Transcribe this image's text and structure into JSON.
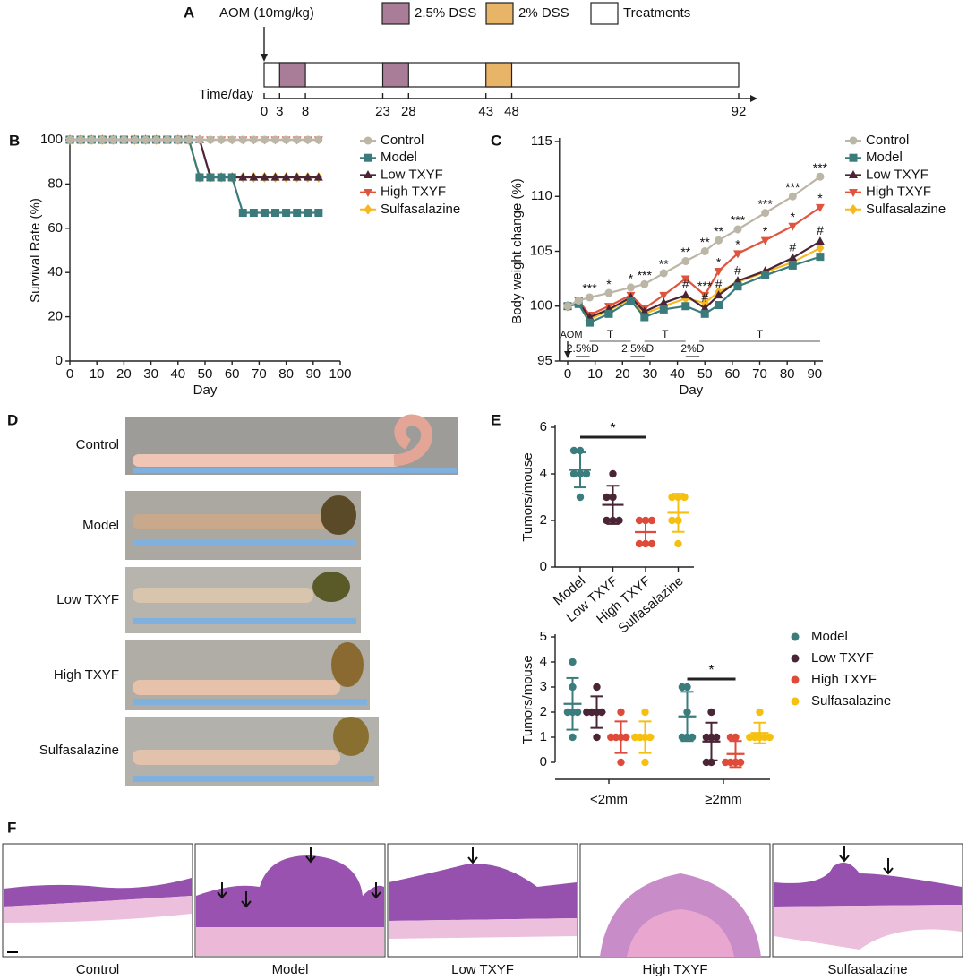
{
  "panel_labels": [
    "A",
    "B",
    "C",
    "D",
    "E",
    "F"
  ],
  "timeline": {
    "aom": "AOM (10mg/kg)",
    "legend": [
      {
        "label": "2.5% DSS",
        "color": "#a97d98"
      },
      {
        "label": "2% DSS",
        "color": "#e8b468"
      },
      {
        "label": "Treatments",
        "color": "#ffffff"
      }
    ],
    "axis_label": "Time/day",
    "xlim": [
      0,
      92
    ],
    "xticks": [
      0,
      3,
      8,
      23,
      28,
      43,
      48,
      92
    ],
    "segments": [
      {
        "start": 3,
        "end": 8,
        "color": "#a97d98"
      },
      {
        "start": 23,
        "end": 28,
        "color": "#a97d98"
      },
      {
        "start": 43,
        "end": 48,
        "color": "#e8b468"
      }
    ]
  },
  "chart_data": [
    {
      "type": "line",
      "xlabel": "Day",
      "ylabel": "Survival Rate (%)",
      "x": [
        0,
        4,
        8,
        12,
        16,
        20,
        24,
        28,
        32,
        36,
        40,
        44,
        48,
        52,
        56,
        60,
        64,
        68,
        72,
        76,
        80,
        84,
        88,
        92
      ],
      "series": [
        {
          "name": "Control",
          "color": "#bcb6a6",
          "marker": "circle",
          "values": [
            100,
            100,
            100,
            100,
            100,
            100,
            100,
            100,
            100,
            100,
            100,
            100,
            100,
            100,
            100,
            100,
            100,
            100,
            100,
            100,
            100,
            100,
            100,
            100
          ]
        },
        {
          "name": "Model",
          "color": "#3b7b7b",
          "marker": "square",
          "values": [
            100,
            100,
            100,
            100,
            100,
            100,
            100,
            100,
            100,
            100,
            100,
            100,
            83,
            83,
            83,
            83,
            67,
            67,
            67,
            67,
            67,
            67,
            67,
            67
          ]
        },
        {
          "name": "Low TXYF",
          "color": "#4a2535",
          "marker": "triangle-up",
          "values": [
            100,
            100,
            100,
            100,
            100,
            100,
            100,
            100,
            100,
            100,
            100,
            100,
            100,
            83,
            83,
            83,
            83,
            83,
            83,
            83,
            83,
            83,
            83,
            83
          ]
        },
        {
          "name": "High TXYF",
          "color": "#e0533c",
          "marker": "triangle-down",
          "values": [
            100,
            100,
            100,
            100,
            100,
            100,
            100,
            100,
            100,
            100,
            100,
            100,
            100,
            100,
            100,
            100,
            100,
            100,
            100,
            100,
            100,
            100,
            100,
            100
          ]
        },
        {
          "name": "Sulfasalazine",
          "color": "#f5b820",
          "marker": "diamond",
          "values": [
            100,
            100,
            100,
            100,
            100,
            100,
            100,
            100,
            100,
            100,
            100,
            100,
            83,
            83,
            83,
            83,
            83,
            83,
            83,
            83,
            83,
            83,
            83,
            83
          ]
        }
      ],
      "xlim": [
        0,
        100
      ],
      "xticks": [
        0,
        10,
        20,
        30,
        40,
        50,
        60,
        70,
        80,
        90,
        100
      ],
      "ylim": [
        0,
        100
      ],
      "yticks": [
        0,
        20,
        40,
        60,
        80,
        100
      ],
      "grid": false,
      "legend": "right"
    },
    {
      "type": "line",
      "xlabel": "Day",
      "ylabel": "Body weight change (%)",
      "x": [
        0,
        4,
        8,
        15,
        23,
        28,
        35,
        43,
        50,
        55,
        62,
        72,
        82,
        92
      ],
      "series": [
        {
          "name": "Control",
          "color": "#bcb6a6",
          "marker": "circle",
          "values": [
            100,
            100.5,
            100.8,
            101.2,
            101.7,
            102,
            103,
            104.1,
            105,
            106,
            107,
            108.5,
            110,
            111.8
          ],
          "significance": [
            null,
            null,
            "***",
            "*",
            "*",
            "***",
            "**",
            "**",
            "**",
            "**",
            "***",
            "***",
            "***",
            "***"
          ]
        },
        {
          "name": "Model",
          "color": "#3b7b7b",
          "marker": "square",
          "values": [
            100,
            100.2,
            98.5,
            99.3,
            100.5,
            99,
            99.7,
            100,
            99.3,
            100.1,
            101.8,
            102.8,
            103.7,
            104.5
          ]
        },
        {
          "name": "Low TXYF",
          "color": "#4a2535",
          "marker": "triangle-up",
          "values": [
            100,
            100.3,
            99,
            99.7,
            100.8,
            99.5,
            100.3,
            101,
            99.8,
            101,
            102.3,
            103.2,
            104.4,
            105.9
          ],
          "significance": [
            null,
            null,
            null,
            null,
            null,
            null,
            null,
            "#",
            "#",
            "#",
            "#",
            null,
            "#",
            "#"
          ]
        },
        {
          "name": "High TXYF",
          "color": "#e0533c",
          "marker": "triangle-down",
          "values": [
            100,
            100.5,
            99.2,
            100,
            101,
            99.8,
            101,
            102.5,
            101,
            103.2,
            104.8,
            106,
            107.3,
            109
          ],
          "significance": [
            null,
            null,
            null,
            null,
            null,
            null,
            null,
            null,
            "***",
            "*",
            "*",
            "*",
            "*",
            "*"
          ]
        },
        {
          "name": "Sulfasalazine",
          "color": "#f5b820",
          "marker": "diamond",
          "values": [
            100,
            100.4,
            98.8,
            99.6,
            100.7,
            99.3,
            100,
            100.7,
            100.3,
            101.3,
            102.2,
            103.1,
            104,
            105.3
          ]
        }
      ],
      "regimen": {
        "start_label": "AOM",
        "dss": [
          {
            "label": "2.5%D",
            "start": 3,
            "end": 8
          },
          {
            "label": "2.5%D",
            "start": 23,
            "end": 28
          },
          {
            "label": "2%D",
            "start": 43,
            "end": 48
          }
        ],
        "treatment": [
          {
            "label": "T",
            "start": 8,
            "end": 23
          },
          {
            "label": "T",
            "start": 28,
            "end": 43
          },
          {
            "label": "T",
            "start": 48,
            "end": 92
          }
        ]
      },
      "xlim": [
        -3,
        93
      ],
      "xticks": [
        0,
        10,
        20,
        30,
        40,
        50,
        60,
        70,
        80,
        90
      ],
      "ylim": [
        95,
        115
      ],
      "yticks": [
        95,
        100,
        105,
        110,
        115
      ],
      "grid": false,
      "legend": "right"
    },
    {
      "type": "dotplot",
      "ylabel": "Tumors/mouse",
      "categories": [
        "Model",
        "Low TXYF",
        "High TXYF",
        "Sulfasalazine"
      ],
      "colors": [
        "#3b7d7d",
        "#4a2535",
        "#df4b3a",
        "#f5c010"
      ],
      "points": [
        [
          5,
          5,
          4,
          4,
          4,
          3
        ],
        [
          4,
          3,
          3,
          2,
          2,
          2
        ],
        [
          2,
          2,
          1,
          1,
          1,
          2
        ],
        [
          3,
          3,
          2,
          2,
          1,
          3
        ]
      ],
      "means": [
        4.17,
        2.67,
        1.5,
        2.33
      ],
      "sds": [
        0.75,
        0.82,
        0.55,
        0.82
      ],
      "significance": [
        {
          "text": "*",
          "between": [
            "Model",
            "High TXYF"
          ]
        }
      ],
      "ylim": [
        0,
        6
      ],
      "yticks": [
        0,
        2,
        4,
        6
      ]
    },
    {
      "type": "dotplot",
      "ylabel": "Tumors/mouse",
      "categories": [
        "<2mm",
        "≥2mm"
      ],
      "series": [
        {
          "name": "Model",
          "color": "#3b7d7d",
          "points": [
            [
              4,
              3,
              2,
              2,
              2,
              1
            ],
            [
              3,
              3,
              2,
              1,
              1,
              1
            ]
          ],
          "means": [
            2.33,
            1.83
          ],
          "sds": [
            1.03,
            0.98
          ]
        },
        {
          "name": "Low TXYF",
          "color": "#4a2535",
          "points": [
            [
              3,
              2,
              2,
              2,
              2,
              1
            ],
            [
              2,
              1,
              1,
              1,
              0,
              0
            ]
          ],
          "means": [
            2,
            0.83
          ],
          "sds": [
            0.63,
            0.75
          ]
        },
        {
          "name": "High TXYF",
          "color": "#df4b3a",
          "points": [
            [
              2,
              1,
              1,
              1,
              1,
              0
            ],
            [
              1,
              1,
              0,
              0,
              0,
              0
            ]
          ],
          "means": [
            1,
            0.33
          ],
          "sds": [
            0.63,
            0.52
          ]
        },
        {
          "name": "Sulfasalazine",
          "color": "#f5c010",
          "points": [
            [
              2,
              1,
              1,
              1,
              1,
              0
            ],
            [
              2,
              1,
              1,
              1,
              1,
              1
            ]
          ],
          "means": [
            1,
            1.17
          ],
          "sds": [
            0.63,
            0.41
          ]
        }
      ],
      "significance": [
        {
          "text": "*",
          "category": "≥2mm",
          "between": [
            "Model",
            "High TXYF"
          ]
        }
      ],
      "ylim": [
        0,
        5
      ],
      "yticks": [
        0,
        1,
        2,
        3,
        4,
        5
      ],
      "legend": "right"
    }
  ],
  "photos": {
    "labels": [
      "Control",
      "Model",
      "Low TXYF",
      "High TXYF",
      "Sulfasalazine"
    ]
  },
  "histology": {
    "labels": [
      "Control",
      "Model",
      "Low TXYF",
      "High TXYF",
      "Sulfasalazine"
    ]
  }
}
